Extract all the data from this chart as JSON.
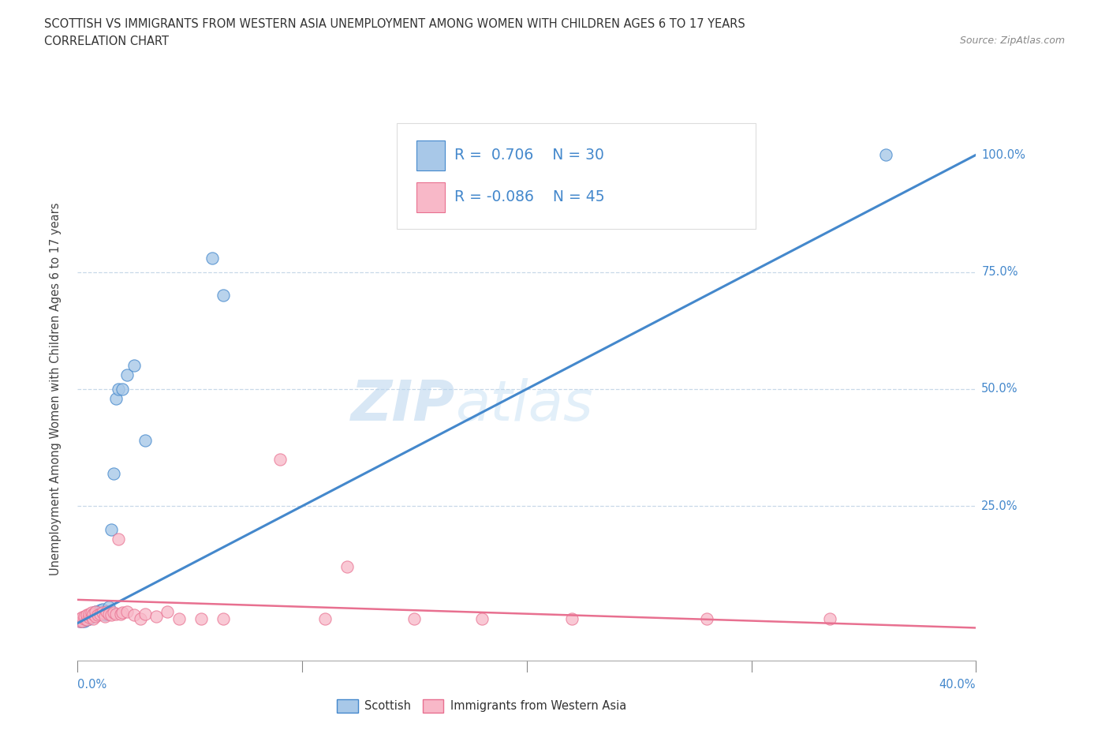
{
  "title": "SCOTTISH VS IMMIGRANTS FROM WESTERN ASIA UNEMPLOYMENT AMONG WOMEN WITH CHILDREN AGES 6 TO 17 YEARS",
  "subtitle": "CORRELATION CHART",
  "source": "Source: ZipAtlas.com",
  "xlabel_bottom_left": "0.0%",
  "xlabel_bottom_right": "40.0%",
  "ylabel": "Unemployment Among Women with Children Ages 6 to 17 years",
  "yticklabels_right": [
    "100.0%",
    "75.0%",
    "50.0%",
    "25.0%"
  ],
  "ytick_values": [
    0.0,
    0.25,
    0.5,
    0.75,
    1.0
  ],
  "xmin": 0.0,
  "xmax": 0.4,
  "ymin": -0.08,
  "ymax": 1.08,
  "scottish_color": "#a8c8e8",
  "immigrants_color": "#f8b8c8",
  "scottish_line_color": "#4488cc",
  "immigrants_line_color": "#e87090",
  "watermark_zip": "ZIP",
  "watermark_atlas": "atlas",
  "scottish_x": [
    0.001,
    0.002,
    0.003,
    0.003,
    0.004,
    0.004,
    0.005,
    0.005,
    0.006,
    0.006,
    0.007,
    0.008,
    0.009,
    0.01,
    0.011,
    0.012,
    0.013,
    0.014,
    0.015,
    0.016,
    0.017,
    0.018,
    0.02,
    0.022,
    0.025,
    0.03,
    0.06,
    0.065,
    0.28,
    0.36
  ],
  "scottish_y": [
    0.005,
    0.005,
    0.005,
    0.008,
    0.008,
    0.01,
    0.01,
    0.012,
    0.015,
    0.018,
    0.02,
    0.025,
    0.022,
    0.028,
    0.03,
    0.018,
    0.02,
    0.035,
    0.2,
    0.32,
    0.48,
    0.5,
    0.5,
    0.53,
    0.55,
    0.39,
    0.78,
    0.7,
    1.0,
    1.0
  ],
  "immigrants_x": [
    0.001,
    0.001,
    0.002,
    0.002,
    0.003,
    0.003,
    0.004,
    0.004,
    0.005,
    0.005,
    0.006,
    0.006,
    0.007,
    0.007,
    0.008,
    0.008,
    0.009,
    0.01,
    0.011,
    0.012,
    0.013,
    0.014,
    0.015,
    0.016,
    0.017,
    0.018,
    0.019,
    0.02,
    0.022,
    0.025,
    0.028,
    0.03,
    0.035,
    0.04,
    0.045,
    0.055,
    0.065,
    0.09,
    0.11,
    0.12,
    0.15,
    0.18,
    0.22,
    0.28,
    0.335
  ],
  "immigrants_y": [
    0.005,
    0.01,
    0.005,
    0.012,
    0.01,
    0.015,
    0.008,
    0.018,
    0.012,
    0.02,
    0.015,
    0.022,
    0.01,
    0.02,
    0.015,
    0.025,
    0.018,
    0.02,
    0.022,
    0.015,
    0.025,
    0.02,
    0.018,
    0.022,
    0.02,
    0.18,
    0.02,
    0.022,
    0.025,
    0.018,
    0.01,
    0.02,
    0.015,
    0.025,
    0.01,
    0.01,
    0.01,
    0.35,
    0.01,
    0.12,
    0.01,
    0.01,
    0.01,
    0.01,
    0.01
  ],
  "scottish_trendline_x": [
    0.0,
    0.4
  ],
  "scottish_trendline_y": [
    0.0,
    1.0
  ],
  "immigrants_trendline_x": [
    0.0,
    0.4
  ],
  "immigrants_trendline_y": [
    0.05,
    -0.01
  ]
}
